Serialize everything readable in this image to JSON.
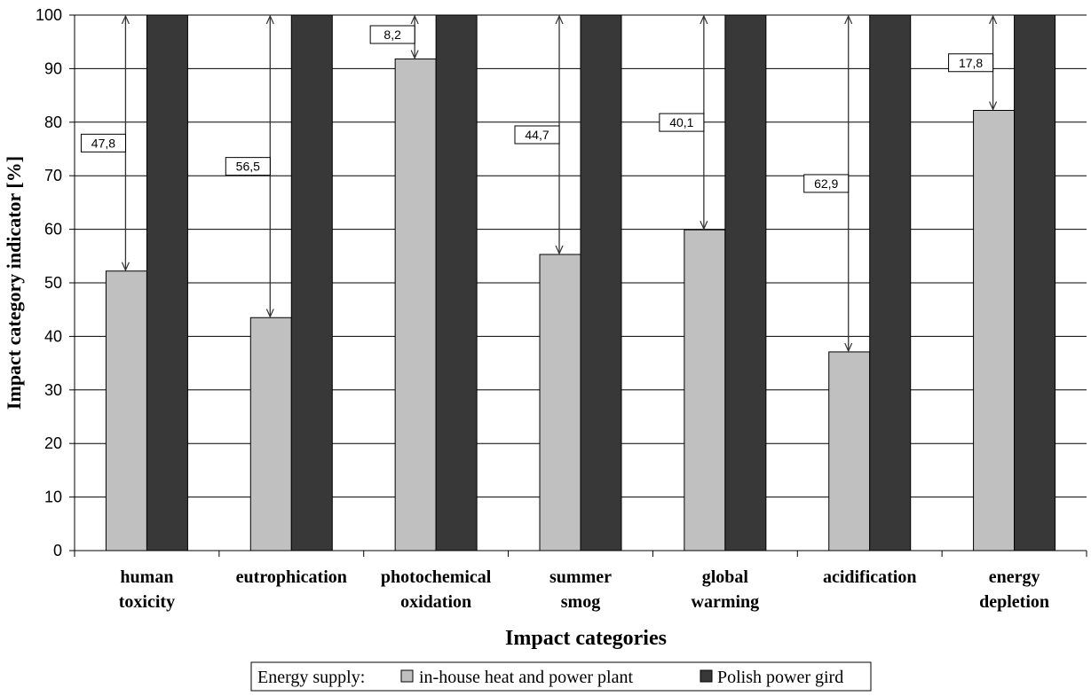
{
  "chart_data": {
    "type": "bar",
    "categories": [
      [
        "human",
        "toxicity"
      ],
      [
        "eutrophication"
      ],
      [
        "photochemical",
        "oxidation"
      ],
      [
        "summer",
        "smog"
      ],
      [
        "global",
        "warming"
      ],
      [
        "acidification"
      ],
      [
        "energy",
        "depletion"
      ]
    ],
    "series": [
      {
        "name": "in-house heat and power plant",
        "values": [
          52.2,
          43.5,
          91.8,
          55.3,
          59.9,
          37.1,
          82.2
        ],
        "color": "#c0c0c0"
      },
      {
        "name": "Polish power gird",
        "values": [
          100,
          100,
          100,
          100,
          100,
          100,
          100
        ],
        "color": "#383838"
      }
    ],
    "differences": [
      "47,8",
      "56,5",
      "8,2",
      "44,7",
      "40,1",
      "62,9",
      "17,8"
    ],
    "ylim": [
      0,
      100
    ],
    "yticks": [
      0,
      10,
      20,
      30,
      40,
      50,
      60,
      70,
      80,
      90,
      100
    ],
    "xlabel": "Impact categories",
    "ylabel": "Impact category indicator [%]",
    "legend_title": "Energy supply:",
    "legend_position": "bottom",
    "grid": true
  }
}
